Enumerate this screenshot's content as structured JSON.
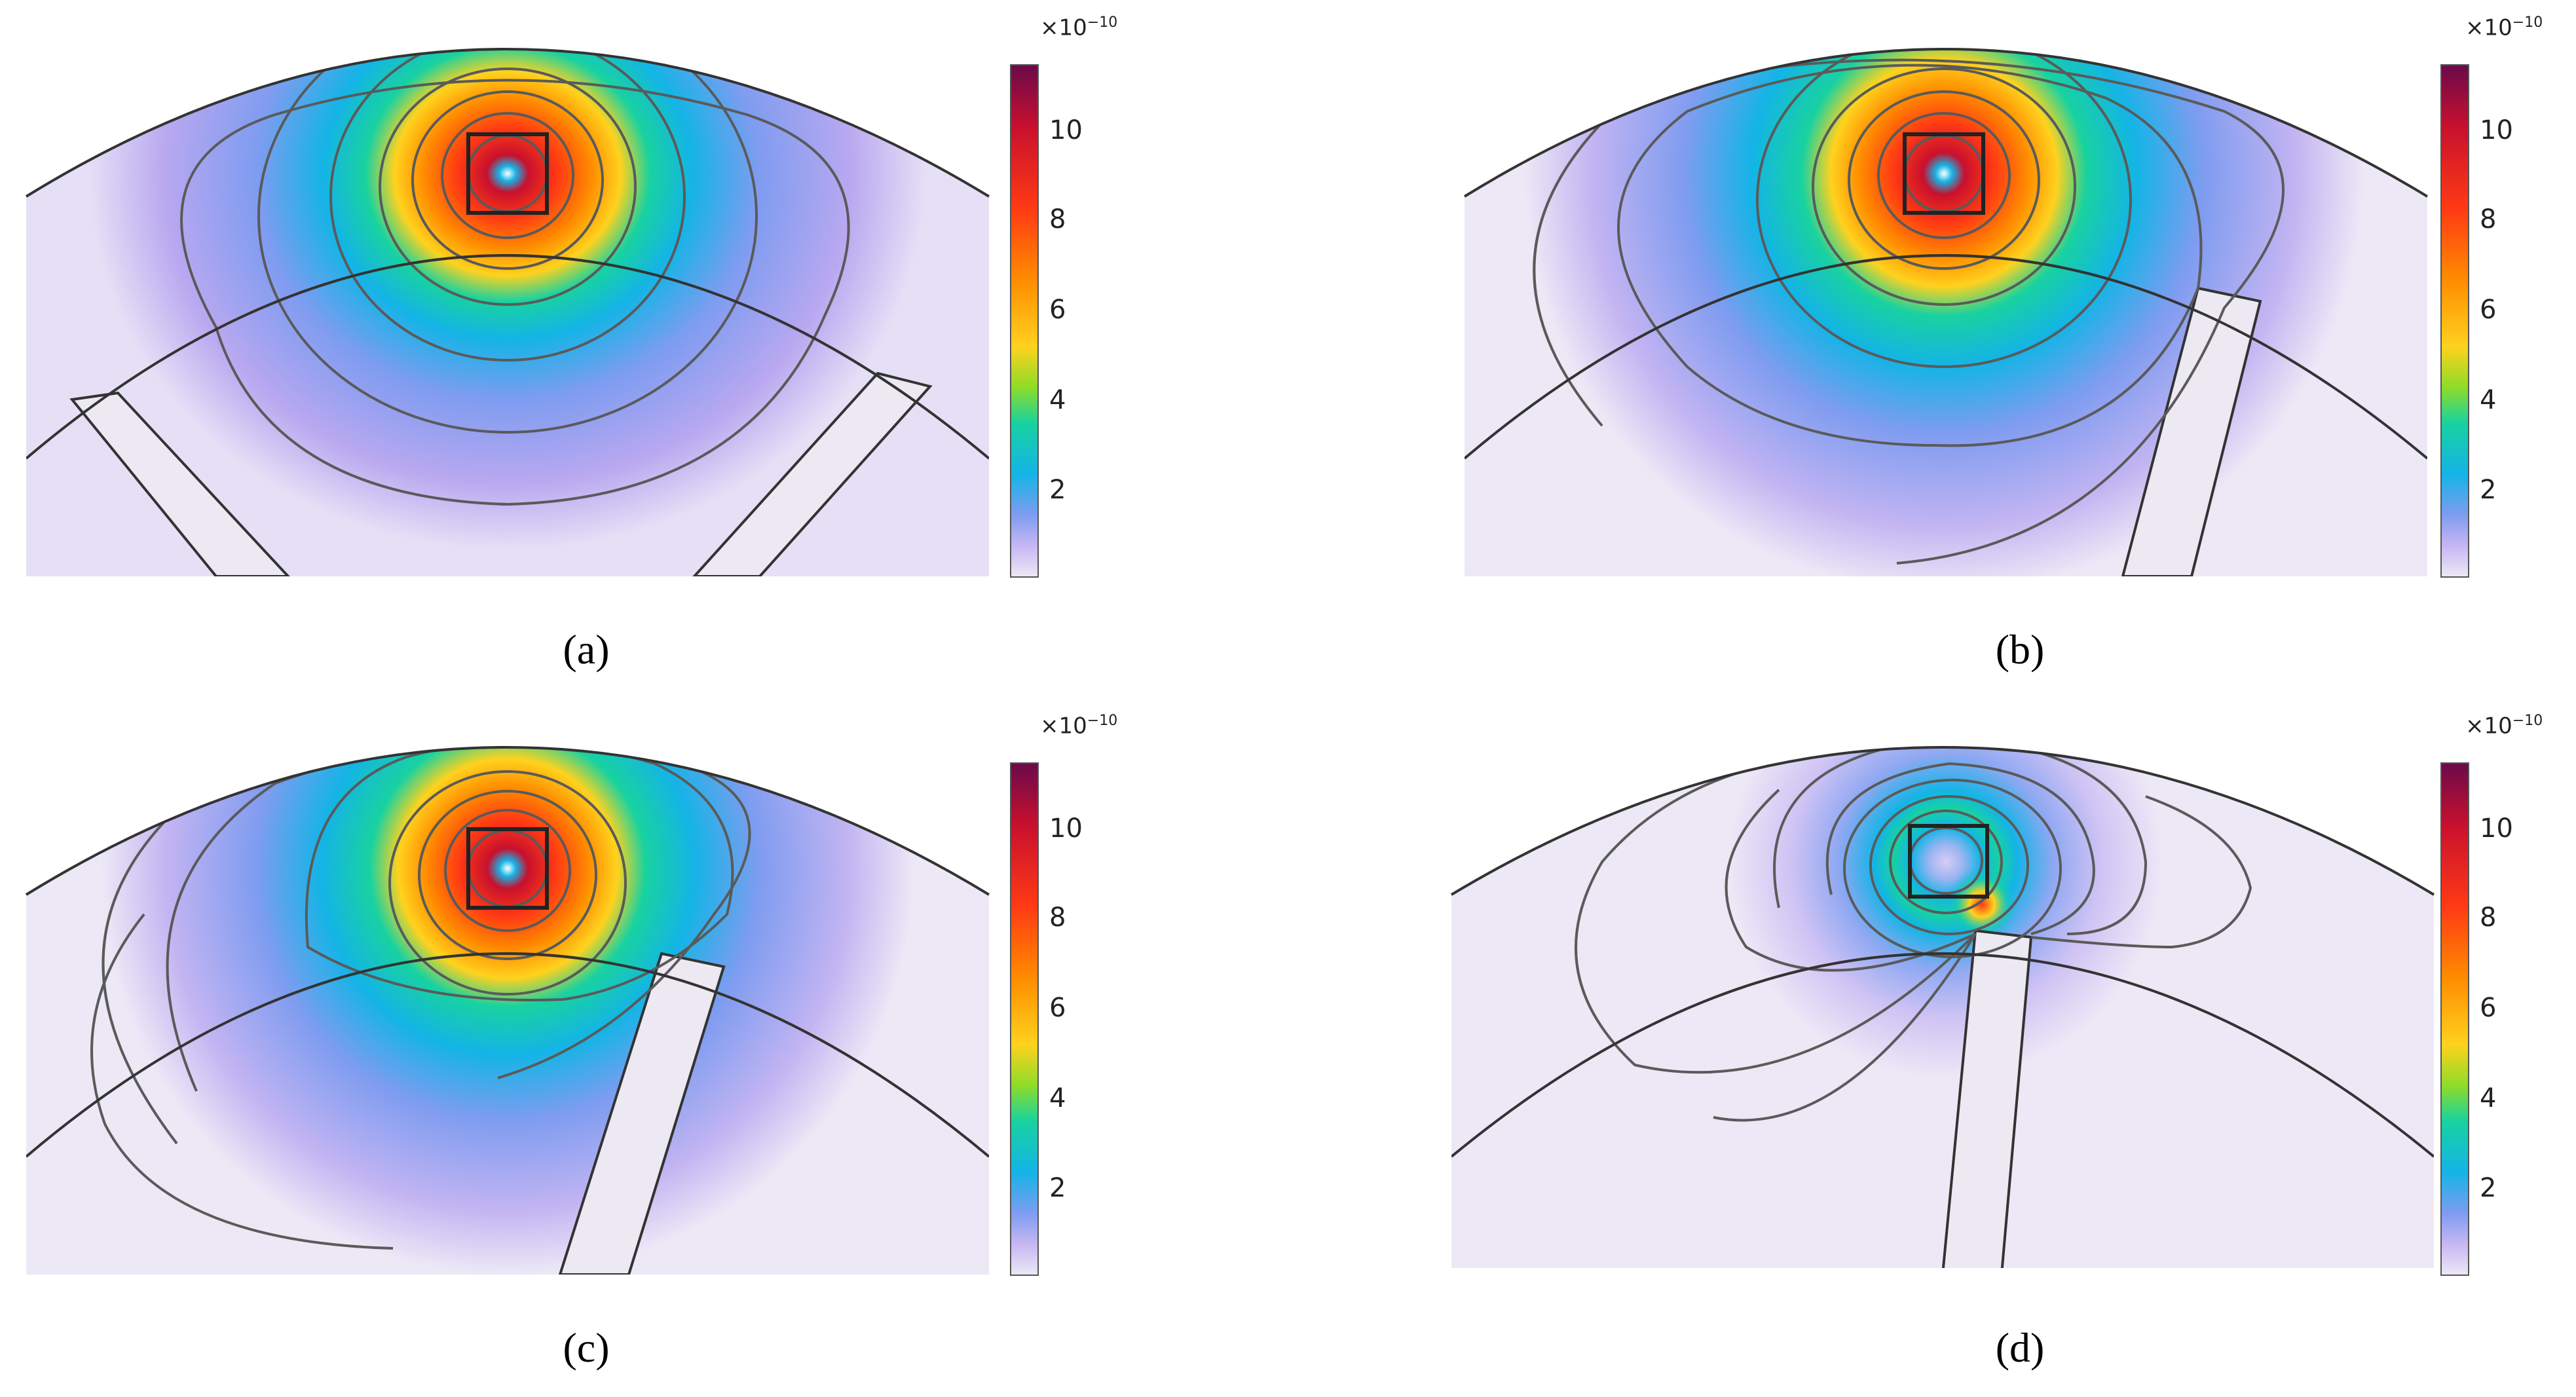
{
  "panels": [
    {
      "id": "a",
      "label": "(a)"
    },
    {
      "id": "b",
      "label": "(b)"
    },
    {
      "id": "c",
      "label": "(c)"
    },
    {
      "id": "d",
      "label": "(d)"
    }
  ],
  "colorbar": {
    "exponent_prefix": "×10",
    "exponent": "−10",
    "ticks": [
      "10",
      "8",
      "6",
      "4",
      "2"
    ],
    "colors": [
      "#6b0a4a",
      "#c8102e",
      "#ff3a14",
      "#ff8c00",
      "#ffd21e",
      "#8edc28",
      "#18d2a0",
      "#14b4e6",
      "#7f9cf0",
      "#c6b6f2",
      "#ece8f6"
    ]
  }
}
